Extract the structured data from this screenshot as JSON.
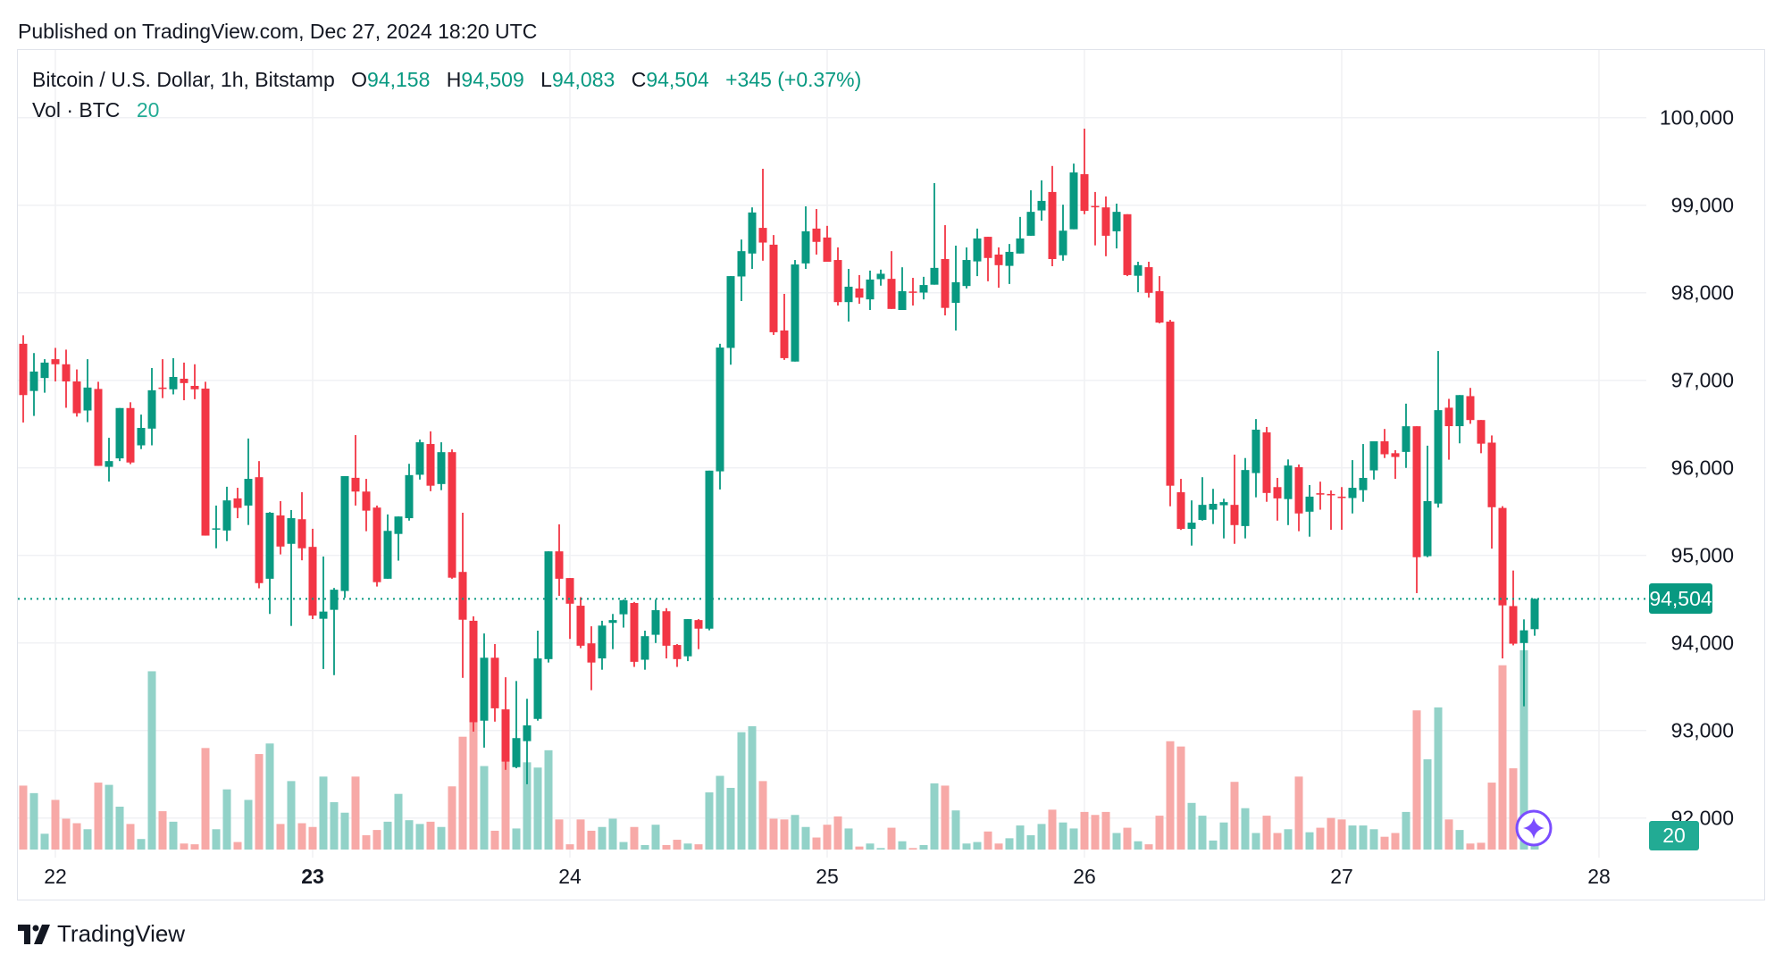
{
  "published": "Published on TradingView.com, Dec 27, 2024 18:20 UTC",
  "legend": {
    "symbol": "Bitcoin / U.S. Dollar, 1h, Bitstamp",
    "o_label": "O",
    "o_value": "94,158",
    "h_label": "H",
    "h_value": "94,509",
    "l_label": "L",
    "l_value": "94,083",
    "c_label": "C",
    "c_value": "94,504",
    "change": "+345 (+0.37%)",
    "vol_label": "Vol · BTC",
    "vol_value": "20"
  },
  "colors": {
    "up": "#089981",
    "down": "#f23645",
    "vol_up": "#92d2c8",
    "vol_down": "#f7a9a7",
    "grid": "#f0f1f4",
    "accent": "#7b4dff"
  },
  "footer": {
    "brand": "TradingView"
  },
  "chart_data": {
    "type": "candlestick",
    "title": "Bitcoin / U.S. Dollar, 1h, Bitstamp",
    "interval": "1h",
    "first_bar": "Dec 21 21:00",
    "last_bar": "Dec 27 18:00",
    "ylim": [
      91600,
      100400
    ],
    "grid": true,
    "price_ticks": [
      {
        "value": 100000,
        "label": "100,000"
      },
      {
        "value": 99000,
        "label": "99,000"
      },
      {
        "value": 98000,
        "label": "98,000"
      },
      {
        "value": 97000,
        "label": "97,000"
      },
      {
        "value": 96000,
        "label": "96,000"
      },
      {
        "value": 95000,
        "label": "95,000"
      },
      {
        "value": 94000,
        "label": "94,000"
      },
      {
        "value": 93000,
        "label": "93,000"
      },
      {
        "value": 92000,
        "label": "92,000"
      }
    ],
    "date_ticks": [
      {
        "bar_index": 3,
        "label": "22",
        "bold": false
      },
      {
        "bar_index": 27,
        "label": "23",
        "bold": true
      },
      {
        "bar_index": 51,
        "label": "24",
        "bold": false
      },
      {
        "bar_index": 75,
        "label": "25",
        "bold": false
      },
      {
        "bar_index": 99,
        "label": "26",
        "bold": false
      },
      {
        "bar_index": 123,
        "label": "27",
        "bold": false
      },
      {
        "bar_index": 147,
        "label": "28",
        "bold": false
      }
    ],
    "last_price": {
      "value": 94504,
      "label": "94,504"
    },
    "last_volume": {
      "value": 20,
      "label": "20"
    },
    "columns": [
      "open",
      "high",
      "low",
      "close",
      "volume"
    ],
    "bars": [
      [
        97418,
        97515,
        96519,
        96832,
        85
      ],
      [
        96879,
        97312,
        96594,
        97101,
        75
      ],
      [
        97027,
        97242,
        96859,
        97203,
        21
      ],
      [
        97242,
        97371,
        96988,
        97184,
        66
      ],
      [
        97184,
        97351,
        96687,
        96988,
        41
      ],
      [
        96988,
        97125,
        96586,
        96625,
        35
      ],
      [
        96656,
        97242,
        96523,
        96918,
        27
      ],
      [
        96902,
        96984,
        96023,
        96023,
        89
      ],
      [
        96012,
        96344,
        95844,
        96078,
        86
      ],
      [
        96109,
        96684,
        96078,
        96684,
        57
      ],
      [
        96684,
        96750,
        96043,
        96062,
        34
      ],
      [
        96258,
        96609,
        96215,
        96457,
        14
      ],
      [
        96449,
        97141,
        96258,
        96887,
        237
      ],
      [
        96918,
        97242,
        96797,
        96902,
        51
      ],
      [
        96898,
        97254,
        96840,
        97039,
        37
      ],
      [
        97019,
        97203,
        96773,
        96969,
        8
      ],
      [
        96937,
        97184,
        96785,
        96898,
        7
      ],
      [
        96906,
        96984,
        95227,
        95227,
        135
      ],
      [
        95305,
        95570,
        95082,
        95310,
        27
      ],
      [
        95285,
        95785,
        95164,
        95629,
        80
      ],
      [
        95652,
        95773,
        95426,
        95543,
        10
      ],
      [
        95570,
        96336,
        95348,
        95875,
        66
      ],
      [
        95894,
        96078,
        94625,
        94684,
        127
      ],
      [
        94734,
        95496,
        94332,
        95488,
        141
      ],
      [
        95457,
        95621,
        95012,
        95102,
        34
      ],
      [
        95133,
        95519,
        94195,
        95426,
        91
      ],
      [
        95414,
        95723,
        94945,
        95082,
        35
      ],
      [
        95098,
        95305,
        94273,
        94313,
        30
      ],
      [
        94277,
        94988,
        93703,
        94359,
        97
      ],
      [
        94379,
        94629,
        93633,
        94609,
        63
      ],
      [
        94594,
        95906,
        94516,
        95906,
        49
      ],
      [
        95887,
        96375,
        95570,
        95730,
        97
      ],
      [
        95730,
        95875,
        95277,
        95512,
        19
      ],
      [
        95547,
        95570,
        94645,
        94695,
        26
      ],
      [
        94734,
        95469,
        94734,
        95281,
        37
      ],
      [
        95246,
        95445,
        94941,
        95445,
        74
      ],
      [
        95426,
        96047,
        95398,
        95918,
        39
      ],
      [
        95922,
        96324,
        95867,
        96293,
        34
      ],
      [
        96273,
        96418,
        95734,
        95797,
        37
      ],
      [
        95816,
        96293,
        95746,
        96180,
        30
      ],
      [
        96180,
        96211,
        94734,
        94746,
        84
      ],
      [
        94812,
        95488,
        93602,
        94266,
        150
      ],
      [
        94254,
        94305,
        92988,
        93094,
        169
      ],
      [
        93113,
        94109,
        92805,
        93832,
        111
      ],
      [
        93832,
        93988,
        93102,
        93254,
        25
      ],
      [
        93242,
        93609,
        92551,
        92645,
        118
      ],
      [
        92582,
        93566,
        92570,
        92914,
        28
      ],
      [
        92879,
        93363,
        92387,
        93059,
        116
      ],
      [
        93133,
        94141,
        93113,
        93824,
        109
      ],
      [
        93816,
        95047,
        93777,
        95047,
        132
      ],
      [
        95047,
        95355,
        94539,
        94734,
        40
      ],
      [
        94742,
        94742,
        94047,
        94449,
        7
      ],
      [
        94426,
        94523,
        93941,
        93969,
        40
      ],
      [
        93996,
        94191,
        93461,
        93777,
        25
      ],
      [
        93824,
        94254,
        93695,
        94199,
        30
      ],
      [
        94230,
        94332,
        93930,
        94262,
        41
      ],
      [
        94328,
        94496,
        94176,
        94488,
        10
      ],
      [
        94457,
        94469,
        93727,
        93785,
        30
      ],
      [
        93809,
        94141,
        93695,
        94078,
        6
      ],
      [
        94094,
        94496,
        94000,
        94375,
        33
      ],
      [
        94363,
        94398,
        93824,
        93969,
        6
      ],
      [
        93977,
        93988,
        93727,
        93816,
        13
      ],
      [
        93848,
        94273,
        93793,
        94273,
        8
      ],
      [
        94262,
        94273,
        93930,
        94164,
        7
      ],
      [
        94164,
        95969,
        94145,
        95969,
        76
      ],
      [
        95961,
        97418,
        95754,
        97375,
        98
      ],
      [
        97371,
        98191,
        97179,
        98191,
        82
      ],
      [
        98187,
        98609,
        97906,
        98476,
        156
      ],
      [
        98449,
        98976,
        98273,
        98918,
        164
      ],
      [
        98742,
        99417,
        98367,
        98574,
        91
      ],
      [
        98550,
        98660,
        97519,
        97550,
        41
      ],
      [
        97570,
        97988,
        97234,
        97254,
        40
      ],
      [
        97215,
        98375,
        97215,
        98324,
        46
      ],
      [
        98336,
        98988,
        98273,
        98703,
        30
      ],
      [
        98734,
        98957,
        98437,
        98582,
        16
      ],
      [
        98632,
        98765,
        98355,
        98355,
        33
      ],
      [
        98375,
        98519,
        97855,
        97894,
        44
      ],
      [
        97894,
        98273,
        97672,
        98070,
        28
      ],
      [
        98050,
        98203,
        97875,
        97945,
        4
      ],
      [
        97925,
        98254,
        97804,
        98152,
        8
      ],
      [
        98156,
        98265,
        98082,
        98218,
        2
      ],
      [
        98160,
        98476,
        97816,
        97816,
        29
      ],
      [
        97804,
        98292,
        97804,
        98019,
        11
      ],
      [
        98015,
        98171,
        97855,
        98003,
        2
      ],
      [
        98003,
        98183,
        97925,
        98089,
        6
      ],
      [
        98093,
        99253,
        98093,
        98285,
        88
      ],
      [
        98386,
        98773,
        97742,
        97828,
        85
      ],
      [
        97886,
        98539,
        97570,
        98121,
        52
      ],
      [
        98078,
        98519,
        98050,
        98375,
        8
      ],
      [
        98359,
        98734,
        98191,
        98621,
        10
      ],
      [
        98640,
        98640,
        98132,
        98398,
        24
      ],
      [
        98437,
        98519,
        98058,
        98316,
        8
      ],
      [
        98308,
        98558,
        98101,
        98468,
        15
      ],
      [
        98449,
        98867,
        98449,
        98621,
        32
      ],
      [
        98652,
        99171,
        98652,
        98925,
        19
      ],
      [
        98941,
        99285,
        98824,
        99050,
        34
      ],
      [
        99152,
        99449,
        98304,
        98386,
        53
      ],
      [
        98429,
        99007,
        98367,
        98710,
        36
      ],
      [
        98726,
        99476,
        98726,
        99375,
        28
      ],
      [
        99355,
        99875,
        98898,
        98937,
        50
      ],
      [
        98992,
        99152,
        98542,
        98984,
        46
      ],
      [
        98976,
        99101,
        98418,
        98652,
        50
      ],
      [
        98703,
        99019,
        98507,
        98925,
        22
      ],
      [
        98898,
        98898,
        98191,
        98203,
        29
      ],
      [
        98195,
        98355,
        98007,
        98316,
        11
      ],
      [
        98293,
        98355,
        97945,
        98000,
        7
      ],
      [
        98019,
        98191,
        97652,
        97660,
        45
      ],
      [
        97671,
        97691,
        95562,
        95797,
        144
      ],
      [
        95722,
        95875,
        95292,
        95304,
        137
      ],
      [
        95304,
        95629,
        95113,
        95375,
        62
      ],
      [
        95406,
        95894,
        95398,
        95578,
        45
      ],
      [
        95523,
        95761,
        95359,
        95590,
        12
      ],
      [
        95574,
        95648,
        95195,
        95609,
        36
      ],
      [
        95578,
        96152,
        95133,
        95347,
        90
      ],
      [
        95336,
        96113,
        95195,
        95976,
        55
      ],
      [
        95941,
        96558,
        95664,
        96437,
        22
      ],
      [
        96406,
        96468,
        95613,
        95714,
        45
      ],
      [
        95781,
        95886,
        95398,
        95652,
        22
      ],
      [
        95644,
        96097,
        95347,
        96027,
        27
      ],
      [
        96008,
        96039,
        95277,
        95480,
        97
      ],
      [
        95500,
        95804,
        95215,
        95672,
        23
      ],
      [
        95711,
        95843,
        95523,
        95695,
        29
      ],
      [
        95703,
        95742,
        95293,
        95687,
        42
      ],
      [
        95672,
        95781,
        95293,
        95656,
        40
      ],
      [
        95656,
        96089,
        95480,
        95773,
        32
      ],
      [
        95746,
        96273,
        95613,
        95886,
        32
      ],
      [
        95972,
        96304,
        95867,
        96304,
        27
      ],
      [
        96304,
        96445,
        96113,
        96156,
        17
      ],
      [
        96168,
        96203,
        95875,
        96125,
        22
      ],
      [
        96183,
        96734,
        96000,
        96476,
        50
      ],
      [
        96476,
        96476,
        94570,
        94980,
        185
      ],
      [
        94992,
        96254,
        94980,
        95621,
        120
      ],
      [
        95593,
        97335,
        95547,
        96660,
        189
      ],
      [
        96688,
        96789,
        96094,
        96477,
        40
      ],
      [
        96477,
        96832,
        96281,
        96832,
        26
      ],
      [
        96820,
        96914,
        96504,
        96547,
        8
      ],
      [
        96547,
        96547,
        96168,
        96277,
        9
      ],
      [
        96289,
        96371,
        95078,
        95551,
        89
      ],
      [
        95543,
        95563,
        93824,
        94430,
        245
      ],
      [
        94422,
        94828,
        93973,
        93992,
        108
      ],
      [
        94000,
        94270,
        93277,
        94145,
        265
      ],
      [
        94158,
        94509,
        94083,
        94504,
        20
      ]
    ]
  }
}
